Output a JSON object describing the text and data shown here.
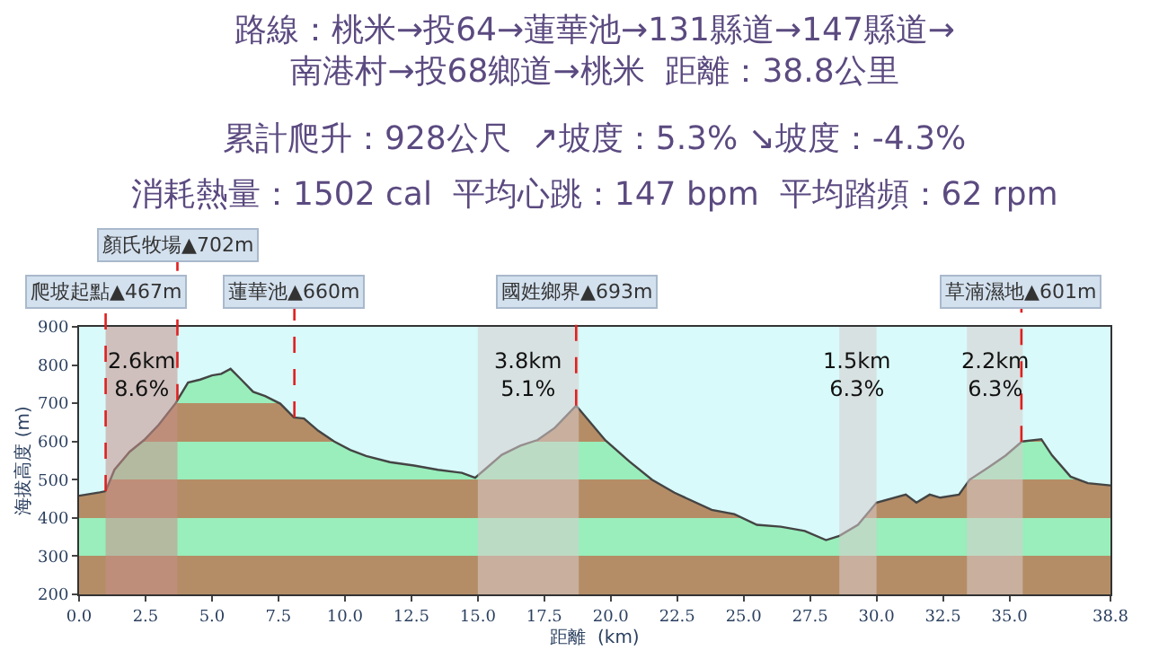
{
  "chart_data": {
    "type": "area",
    "title": "路線：桃米→投64→蓮華池→131縣道→147縣道→南港村→投68鄉道→桃米  距離：38.8公里",
    "subtitle": "累計爬升：928公尺  ↗坡度：5.3% ↘坡度：-4.3%",
    "annotations": [
      "消耗熱量：1502 cal  平均心跳：147 bpm  平均踏頻：62 rpm"
    ],
    "xlabel": "距離  (km)",
    "ylabel": "海拔高度 (m)",
    "series": [
      {
        "color": "#b48d66",
        "x": [
          0,
          0.78,
          1.0,
          1.33,
          1.9,
          2.45,
          3.0,
          3.63,
          4.1,
          4.56,
          5.0,
          5.35,
          5.7,
          6.1,
          6.55,
          7.0,
          7.57,
          8.08,
          8.46,
          9.0,
          9.6,
          10.2,
          10.8,
          11.7,
          12.6,
          13.5,
          14.4,
          14.9,
          15.25,
          15.9,
          16.6,
          17.25,
          17.9,
          18.7,
          19.8,
          20.7,
          21.55,
          22.4,
          23.8,
          24.65,
          25.5,
          26.4,
          27.3,
          28.1,
          28.6,
          29.3,
          30.0,
          31.1,
          31.5,
          32.0,
          32.4,
          33.1,
          33.5,
          34.2,
          34.85,
          35.47,
          36.2,
          36.6,
          37.3,
          37.95,
          38.8
        ],
        "values": [
          458,
          467,
          470,
          526,
          573,
          604,
          644,
          700,
          754,
          762,
          773,
          777,
          790,
          762,
          730,
          719,
          699,
          663,
          660,
          628,
          600,
          578,
          562,
          546,
          537,
          526,
          518,
          505,
          526,
          565,
          589,
          604,
          636,
          694,
          603,
          548,
          500,
          466,
          421,
          410,
          382,
          377,
          366,
          342,
          353,
          382,
          440,
          461,
          440,
          461,
          453,
          461,
          500,
          532,
          563,
          600,
          606,
          564,
          508,
          491,
          485
        ]
      }
    ],
    "xlim": [
      0,
      38.8
    ],
    "xticks": [
      {
        "value": 0,
        "label": "0.0"
      },
      {
        "value": 2.5,
        "label": "2.5"
      },
      {
        "value": 5,
        "label": "5.0"
      },
      {
        "value": 7.5,
        "label": "7.5"
      },
      {
        "value": 10,
        "label": "10.0"
      },
      {
        "value": 12.5,
        "label": "12.5"
      },
      {
        "value": 15,
        "label": "15.0"
      },
      {
        "value": 17.5,
        "label": "17.5"
      },
      {
        "value": 20,
        "label": "20.0"
      },
      {
        "value": 22.5,
        "label": "22.5"
      },
      {
        "value": 25,
        "label": "25.0"
      },
      {
        "value": 27.5,
        "label": "27.5"
      },
      {
        "value": 30,
        "label": "30.0"
      },
      {
        "value": 32.5,
        "label": "32.5"
      },
      {
        "value": 35,
        "label": "35.0"
      },
      {
        "value": 38.8,
        "label": "38.8"
      }
    ],
    "ylim": [
      200,
      900
    ],
    "yticks": [
      200,
      300,
      400,
      500,
      600,
      700,
      800,
      900
    ],
    "bands": [
      {
        "axis": "x",
        "from": 1.0,
        "to": 3.7,
        "label": "2.6km\n8.6%",
        "color": "#c9908a"
      },
      {
        "axis": "x",
        "from": 15.0,
        "to": 18.8,
        "label": "3.8km\n5.1%",
        "color": "#d8cccc"
      },
      {
        "axis": "x",
        "from": 28.6,
        "to": 30.0,
        "label": "1.5km\n6.3%",
        "color": "#d8cccc"
      },
      {
        "axis": "x",
        "from": 33.4,
        "to": 35.5,
        "label": "2.2km\n6.3%",
        "color": "#d8cccc"
      }
    ],
    "ref_lines": [
      {
        "axis": "x",
        "value": 1.0,
        "label": "爬坡起點▲467m",
        "color": "#e02020",
        "line_style": "dashed"
      },
      {
        "axis": "x",
        "value": 3.7,
        "label": "顏氏牧場▲702m",
        "color": "#e02020",
        "line_style": "dashed"
      },
      {
        "axis": "x",
        "value": 8.1,
        "label": "蓮華池▲660m",
        "color": "#e02020",
        "line_style": "dashed"
      },
      {
        "axis": "x",
        "value": 18.7,
        "label": "國姓鄉界▲693m",
        "color": "#e02020",
        "line_style": "dashed"
      },
      {
        "axis": "x",
        "value": 35.45,
        "label": "草湳濕地▲601m",
        "color": "#e02020",
        "line_style": "dashed"
      }
    ],
    "grid": false
  }
}
